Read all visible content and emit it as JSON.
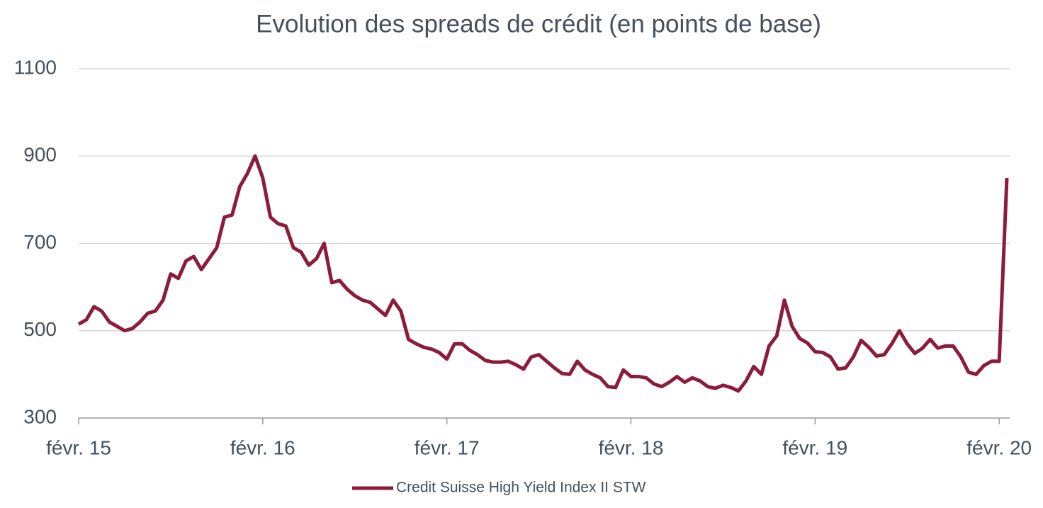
{
  "chart_data": {
    "type": "line",
    "title": "Evolution des spreads de crédit (en points de base)",
    "categories": [
      "févr. 15",
      null,
      null,
      null,
      null,
      null,
      null,
      null,
      null,
      null,
      null,
      null,
      null,
      null,
      null,
      null,
      null,
      null,
      null,
      null,
      null,
      null,
      null,
      null,
      "févr. 16",
      null,
      null,
      null,
      null,
      null,
      null,
      null,
      null,
      null,
      null,
      null,
      null,
      null,
      null,
      null,
      null,
      null,
      null,
      null,
      null,
      null,
      null,
      null,
      "févr. 17",
      null,
      null,
      null,
      null,
      null,
      null,
      null,
      null,
      null,
      null,
      null,
      null,
      null,
      null,
      null,
      null,
      null,
      null,
      null,
      null,
      null,
      null,
      null,
      "févr. 18",
      null,
      null,
      null,
      null,
      null,
      null,
      null,
      null,
      null,
      null,
      null,
      null,
      null,
      null,
      null,
      null,
      null,
      null,
      null,
      null,
      null,
      null,
      null,
      "févr. 19",
      null,
      null,
      null,
      null,
      null,
      null,
      null,
      null,
      null,
      null,
      null,
      null,
      null,
      null,
      null,
      null,
      null,
      null,
      null,
      null,
      null,
      null,
      null,
      "févr. 20",
      null
    ],
    "series": [
      {
        "name": "Credit Suisse High Yield Index II STW",
        "color": "#8c1c3a",
        "values": [
          515,
          525,
          555,
          545,
          520,
          510,
          500,
          505,
          520,
          540,
          545,
          570,
          630,
          620,
          660,
          670,
          640,
          665,
          690,
          760,
          765,
          830,
          860,
          900,
          850,
          760,
          745,
          740,
          690,
          680,
          650,
          665,
          700,
          610,
          615,
          595,
          580,
          570,
          565,
          550,
          535,
          570,
          545,
          480,
          470,
          462,
          458,
          450,
          435,
          470,
          470,
          455,
          445,
          432,
          428,
          428,
          430,
          422,
          412,
          440,
          445,
          430,
          415,
          402,
          400,
          430,
          410,
          400,
          392,
          372,
          370,
          410,
          395,
          395,
          392,
          378,
          372,
          382,
          395,
          382,
          392,
          385,
          372,
          368,
          375,
          370,
          362,
          385,
          418,
          400,
          465,
          488,
          570,
          510,
          482,
          472,
          452,
          450,
          440,
          412,
          415,
          440,
          478,
          462,
          442,
          445,
          470,
          500,
          470,
          448,
          460,
          480,
          460,
          465,
          465,
          440,
          405,
          400,
          420,
          430,
          430,
          850
        ]
      }
    ],
    "ylim": [
      300,
      1100
    ],
    "yticks": [
      300,
      500,
      700,
      900,
      1100
    ],
    "grid": true
  }
}
